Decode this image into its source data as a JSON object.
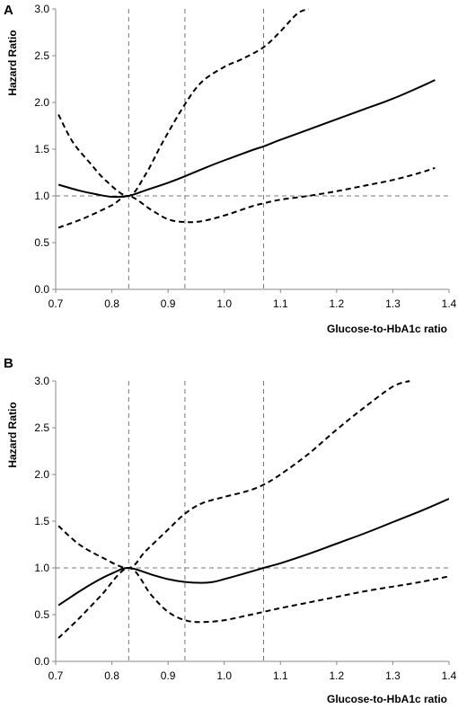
{
  "chart_data": [
    {
      "type": "line",
      "panel": "A",
      "xlabel": "Glucose-to-HbA1c ratio",
      "ylabel": "Hazard Ratio",
      "xlim": [
        0.7,
        1.4
      ],
      "ylim": [
        0.0,
        3.0
      ],
      "xticks": [
        "0.7",
        "0.8",
        "0.9",
        "1.0",
        "1.1",
        "1.2",
        "1.3",
        "1.4"
      ],
      "yticks": [
        "0.0",
        "0.5",
        "1.0",
        "1.5",
        "2.0",
        "2.5",
        "3.0"
      ],
      "grid": false,
      "reference_lines": {
        "y": [
          1.0
        ],
        "x": [
          0.83,
          0.93,
          1.07
        ]
      },
      "series": [
        {
          "role": "estimate",
          "style": "solid",
          "x": [
            0.705,
            0.74,
            0.77,
            0.8,
            0.83,
            0.86,
            0.9,
            0.93,
            0.97,
            1.0,
            1.05,
            1.07,
            1.1,
            1.15,
            1.2,
            1.25,
            1.3,
            1.35,
            1.375
          ],
          "y": [
            1.12,
            1.06,
            1.02,
            0.99,
            1.0,
            1.06,
            1.14,
            1.21,
            1.31,
            1.38,
            1.49,
            1.53,
            1.6,
            1.71,
            1.82,
            1.93,
            2.04,
            2.17,
            2.24
          ]
        },
        {
          "role": "upper_ci",
          "style": "dashed",
          "x": [
            0.705,
            0.73,
            0.76,
            0.79,
            0.83,
            0.86,
            0.89,
            0.93,
            0.96,
            1.0,
            1.03,
            1.07,
            1.1,
            1.13,
            1.15
          ],
          "y": [
            1.87,
            1.58,
            1.36,
            1.16,
            1.0,
            1.23,
            1.57,
            1.98,
            2.22,
            2.38,
            2.46,
            2.59,
            2.76,
            2.95,
            3.0
          ]
        },
        {
          "role": "lower_ci",
          "style": "dashed",
          "x": [
            0.705,
            0.75,
            0.8,
            0.83,
            0.87,
            0.9,
            0.93,
            0.96,
            1.0,
            1.05,
            1.07,
            1.1,
            1.15,
            1.2,
            1.25,
            1.3,
            1.35,
            1.375
          ],
          "y": [
            0.66,
            0.76,
            0.9,
            1.0,
            0.85,
            0.75,
            0.72,
            0.73,
            0.79,
            0.89,
            0.92,
            0.96,
            1.0,
            1.05,
            1.11,
            1.17,
            1.25,
            1.3
          ]
        }
      ]
    },
    {
      "type": "line",
      "panel": "B",
      "xlabel": "Glucose-to-HbA1c ratio",
      "ylabel": "Hazard Ratio",
      "xlim": [
        0.7,
        1.4
      ],
      "ylim": [
        0.0,
        3.0
      ],
      "xticks": [
        "0.7",
        "0.8",
        "0.9",
        "1.0",
        "1.1",
        "1.2",
        "1.3",
        "1.4"
      ],
      "yticks": [
        "0.0",
        "0.5",
        "1.0",
        "1.5",
        "2.0",
        "2.5",
        "3.0"
      ],
      "grid": false,
      "reference_lines": {
        "y": [
          1.0
        ],
        "x": [
          0.83,
          0.93,
          1.07
        ]
      },
      "series": [
        {
          "role": "estimate",
          "style": "solid",
          "x": [
            0.705,
            0.74,
            0.77,
            0.8,
            0.83,
            0.87,
            0.9,
            0.93,
            0.96,
            0.98,
            1.0,
            1.03,
            1.07,
            1.1,
            1.15,
            1.2,
            1.25,
            1.3,
            1.35,
            1.4
          ],
          "y": [
            0.6,
            0.74,
            0.85,
            0.94,
            1.0,
            0.93,
            0.88,
            0.85,
            0.84,
            0.85,
            0.88,
            0.93,
            1.0,
            1.05,
            1.15,
            1.26,
            1.37,
            1.49,
            1.61,
            1.74
          ]
        },
        {
          "role": "upper_ci",
          "style": "dashed",
          "x": [
            0.705,
            0.74,
            0.78,
            0.83,
            0.86,
            0.9,
            0.93,
            0.96,
            1.0,
            1.04,
            1.07,
            1.1,
            1.15,
            1.2,
            1.25,
            1.3,
            1.33
          ],
          "y": [
            1.45,
            1.26,
            1.12,
            1.0,
            1.18,
            1.41,
            1.58,
            1.69,
            1.76,
            1.82,
            1.89,
            2.0,
            2.22,
            2.48,
            2.72,
            2.94,
            3.0
          ]
        },
        {
          "role": "lower_ci",
          "style": "dashed",
          "x": [
            0.705,
            0.74,
            0.78,
            0.83,
            0.87,
            0.9,
            0.93,
            0.96,
            1.0,
            1.04,
            1.07,
            1.1,
            1.15,
            1.2,
            1.25,
            1.3,
            1.35,
            1.4
          ],
          "y": [
            0.25,
            0.45,
            0.7,
            1.0,
            0.71,
            0.53,
            0.44,
            0.42,
            0.44,
            0.49,
            0.53,
            0.57,
            0.63,
            0.69,
            0.75,
            0.8,
            0.85,
            0.91
          ]
        }
      ]
    }
  ]
}
